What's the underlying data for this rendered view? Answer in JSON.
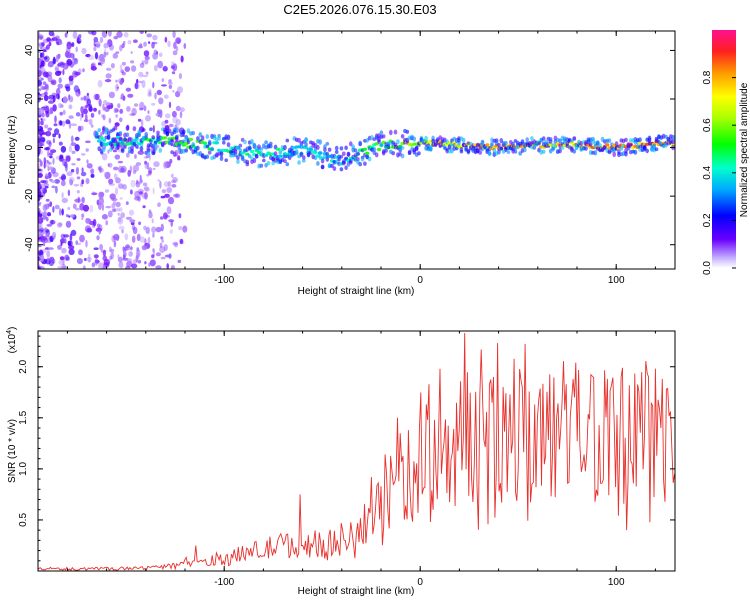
{
  "title": "C2E5.2026.076.15.30.E03",
  "colors": {
    "series_line": "#e8302c",
    "axis": "#000000",
    "ridge_low": "#5a00ff",
    "ridge_high": "#ff2020"
  },
  "chart_data": [
    {
      "type": "heatmap",
      "title": "C2E5.2026.076.15.30.E03",
      "xlabel": "Height of straight line (km)",
      "ylabel": "Frequency (Hz)",
      "xlim": [
        -195,
        130
      ],
      "ylim": [
        -50,
        48
      ],
      "xticks": [
        -100,
        0,
        100
      ],
      "yticks": [
        -40,
        -20,
        0,
        20,
        40
      ],
      "colorbar": {
        "label": "Normalized spectral amplitude",
        "range": [
          0,
          1
        ],
        "ticks": [
          0.0,
          0.2,
          0.4,
          0.6,
          0.8
        ],
        "tick_labels": [
          "0.0",
          "0.2",
          "0.4",
          "0.6",
          "0.8"
        ]
      },
      "ridge": {
        "description": "dominant spectral energy band near 0 Hz",
        "x": [
          -162,
          -140,
          -120,
          -100,
          -80,
          -60,
          -40,
          -20,
          0,
          20,
          40,
          60,
          80,
          100,
          128
        ],
        "freq": [
          3,
          3,
          2,
          0,
          -3,
          -1,
          -5,
          1,
          2,
          1,
          0,
          1,
          1,
          0,
          2
        ],
        "amplitude": [
          0.45,
          0.5,
          0.55,
          0.45,
          0.45,
          0.4,
          0.4,
          0.55,
          0.7,
          0.75,
          0.8,
          0.8,
          0.8,
          0.85,
          0.85
        ]
      }
    },
    {
      "type": "line",
      "xlabel": "Height of straight line (km)",
      "ylabel": "SNR (10 * v/v)",
      "y_multiplier": "(x10",
      "y_multiplier_exp": "4",
      "y_multiplier_close": ")",
      "xlim": [
        -195,
        130
      ],
      "ylim": [
        0,
        2.35
      ],
      "xticks": [
        -100,
        0,
        100
      ],
      "yticks": [
        0.5,
        1.0,
        1.5,
        2.0
      ],
      "ytick_labels": [
        "0.5",
        "1.0",
        "1.5",
        "2.0"
      ],
      "series": [
        {
          "name": "SNR",
          "x": [
            -195,
            -160,
            -140,
            -125,
            -110,
            -100,
            -90,
            -80,
            -70,
            -60,
            -50,
            -40,
            -30,
            -25,
            -20,
            -15,
            -10,
            -5,
            0,
            10,
            20,
            30,
            40,
            50,
            60,
            70,
            80,
            90,
            100,
            110,
            120,
            130
          ],
          "y": [
            0.02,
            0.02,
            0.03,
            0.06,
            0.1,
            0.12,
            0.16,
            0.2,
            0.24,
            0.25,
            0.26,
            0.28,
            0.35,
            0.45,
            0.6,
            0.75,
            0.85,
            0.9,
            1.0,
            1.1,
            1.2,
            1.3,
            1.35,
            1.3,
            1.25,
            1.3,
            1.3,
            1.3,
            1.25,
            1.3,
            1.3,
            1.3
          ],
          "peaks": {
            "x": [
              -115,
              -62,
              -25,
              -12,
              10,
              22,
              37,
              58,
              78,
              97,
              125
            ],
            "y": [
              0.25,
              0.75,
              0.92,
              1.5,
              1.98,
              2.33,
              1.9,
              1.63,
              1.7,
              1.82,
              1.78
            ]
          }
        }
      ]
    }
  ]
}
